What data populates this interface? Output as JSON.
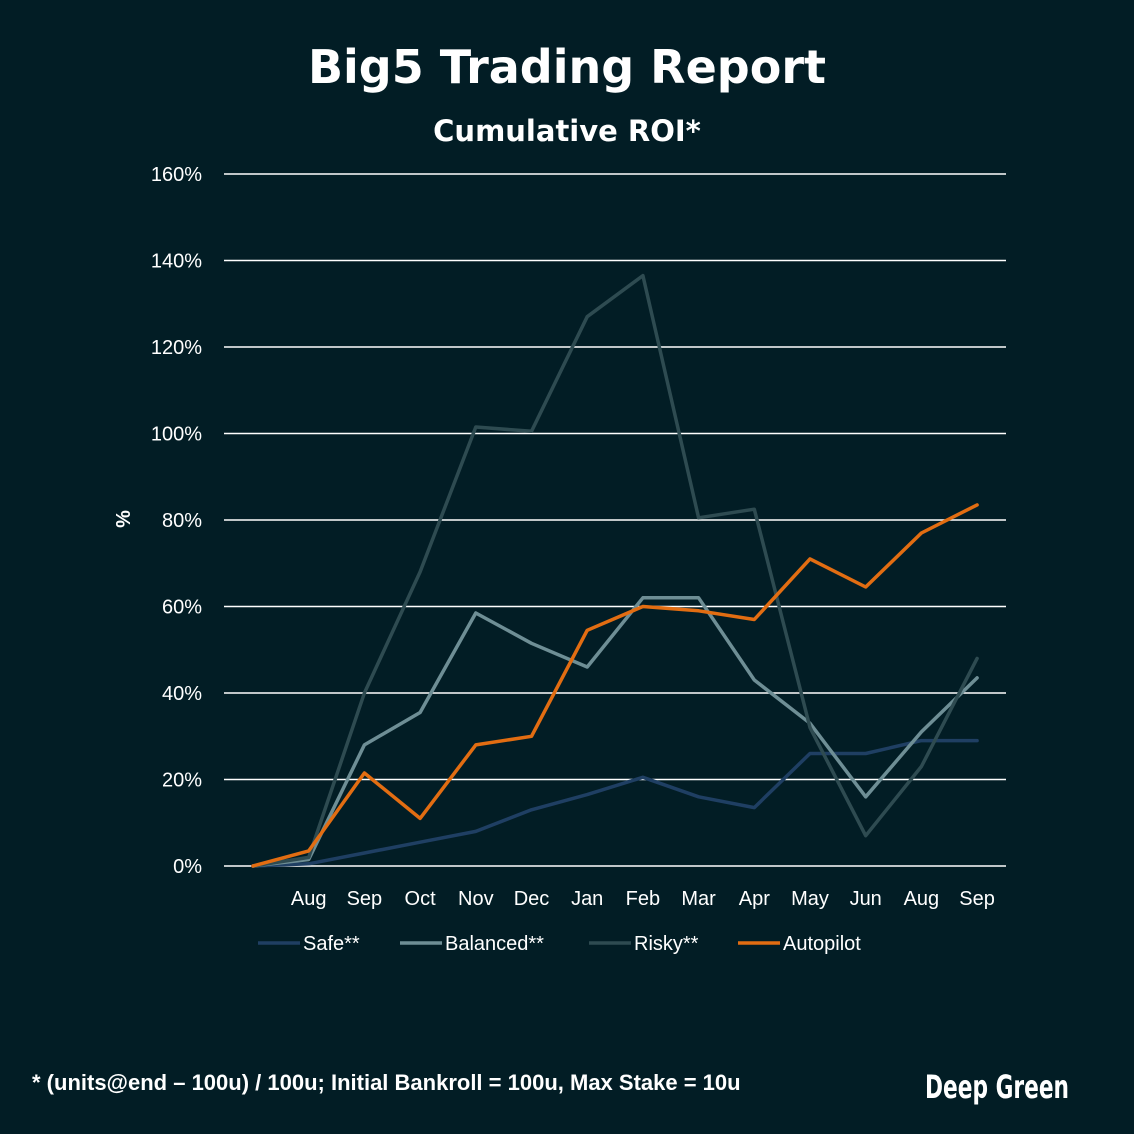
{
  "chart_data": {
    "type": "line",
    "title": "Big5 Trading Report",
    "subtitle": "Cumulative ROI*",
    "xlabel": "",
    "ylabel": "%",
    "ylim": [
      0,
      160
    ],
    "yticks": [
      "0%",
      "20%",
      "40%",
      "60%",
      "80%",
      "100%",
      "120%",
      "140%",
      "160%"
    ],
    "ytick_values": [
      0,
      20,
      40,
      60,
      80,
      100,
      120,
      140,
      160
    ],
    "categories": [
      "",
      "Aug",
      "Sep",
      "Oct",
      "Nov",
      "Dec",
      "Jan",
      "Feb",
      "Mar",
      "Apr",
      "May",
      "Jun",
      "Aug",
      "Sep"
    ],
    "grid": true,
    "legend_position": "bottom",
    "series": [
      {
        "name": "Safe**",
        "color": "#1f3f63",
        "values": [
          0,
          0.5,
          3,
          5.5,
          8,
          13,
          16.5,
          20.5,
          16,
          13.5,
          26,
          26,
          29,
          29
        ]
      },
      {
        "name": "Balanced**",
        "color": "#6e8e95",
        "values": [
          0,
          1.5,
          28,
          35.5,
          58.5,
          51.5,
          46,
          62,
          62,
          43,
          33,
          16,
          31,
          43.5
        ]
      },
      {
        "name": "Risky**",
        "color": "#2e4b51",
        "values": [
          0,
          2,
          40,
          68,
          101.5,
          100.5,
          127,
          136.5,
          80.5,
          82.5,
          32,
          7,
          23,
          48
        ]
      },
      {
        "name": "Autopilot",
        "color": "#e26d12",
        "values": [
          0,
          3.5,
          21.5,
          11,
          28,
          30,
          54.5,
          60,
          59,
          57,
          71,
          64.5,
          77,
          83.5
        ]
      }
    ]
  },
  "footnote": "* (units@end – 100u) / 100u; Initial Bankroll = 100u, Max Stake = 10u",
  "brand": "Deep Green"
}
